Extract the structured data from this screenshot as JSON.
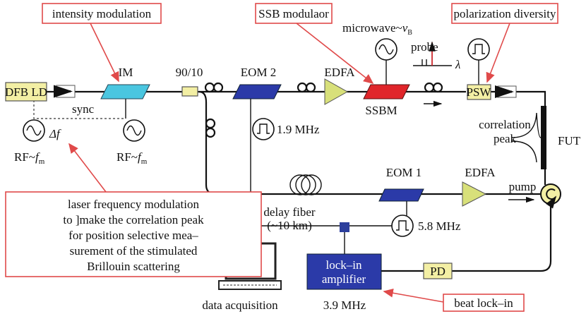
{
  "callouts": {
    "intensity": "intensity modulation",
    "ssb": "SSB modulaor",
    "polarization": "polarization diversity",
    "beat": "beat lock–in",
    "laser": [
      "laser frequency modulation",
      "to ]make the correlation peak",
      "for position selective mea–",
      "surement of the stimulated",
      "Brillouin scattering"
    ]
  },
  "components": {
    "dfb": "DFB LD",
    "im": "IM",
    "coupler": "90/10",
    "eom2": "EOM 2",
    "edfa1": "EDFA",
    "ssbm": "SSBM",
    "psw": "PSW",
    "eom1": "EOM 1",
    "edfa2": "EDFA",
    "pd": "PD",
    "lockin": [
      "lock–in",
      "amplifier"
    ],
    "fut": "FUT"
  },
  "labels": {
    "microwave": {
      "text": "microwave~",
      "var": "v",
      "sub": "B"
    },
    "probe": "probe",
    "lambda": "λ",
    "sync": "sync",
    "delta_f": "Δf",
    "rf_left": {
      "text": "RF~",
      "var": "f",
      "sub": "m"
    },
    "rf_right": {
      "text": "RF~",
      "var": "f",
      "sub": "m"
    },
    "freq_eom2": "1.9 MHz",
    "freq_eom1": "5.8 MHz",
    "freq_lockin": "3.9 MHz",
    "correlation_peak": [
      "correlation",
      "peak"
    ],
    "pump": "pump",
    "delay_fiber": [
      "delay fiber",
      "(~10 km)"
    ],
    "data_acquisition": "data acquisition"
  }
}
